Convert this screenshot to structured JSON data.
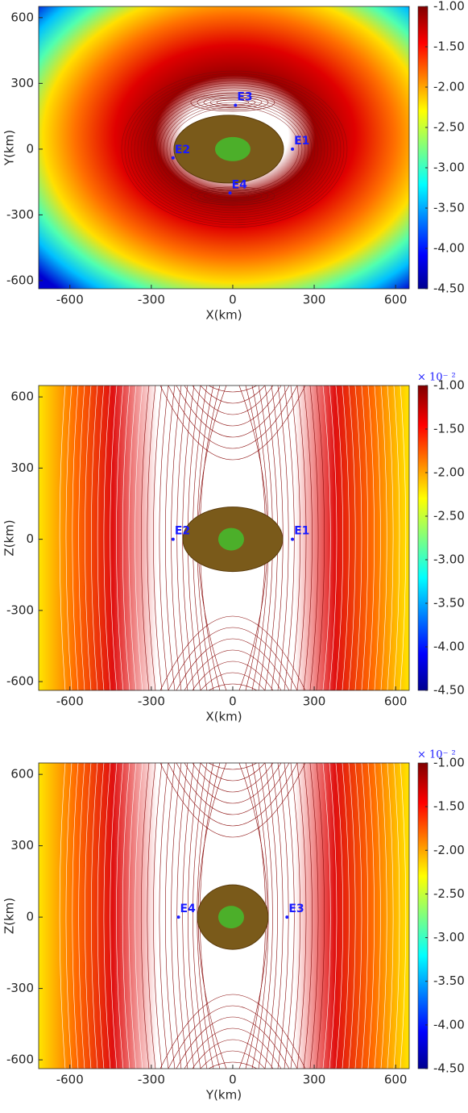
{
  "chart_data": [
    {
      "type": "contour",
      "x_label": "X(km)",
      "y_label": "Y(km)",
      "xlim": [
        -715,
        650
      ],
      "ylim": [
        -637,
        651
      ],
      "xticks": [
        -600,
        -300,
        0,
        300,
        600
      ],
      "yticks": [
        -600,
        -300,
        0,
        300,
        600
      ],
      "colorbar": {
        "lim": [
          -4.5,
          -1
        ],
        "ticks": [
          {
            "value": -1,
            "label": "-1.00"
          },
          {
            "value": -1.5,
            "label": "-1.50"
          },
          {
            "value": -2,
            "label": "-2.00"
          },
          {
            "value": -2.5,
            "label": "-2.50"
          },
          {
            "value": -3,
            "label": "-3.00"
          },
          {
            "value": -3.5,
            "label": "-3.50"
          },
          {
            "value": -4,
            "label": "-4.00"
          },
          {
            "value": -4.5,
            "label": "-4.50"
          }
        ]
      },
      "field": "radial",
      "points": [
        {
          "label": "E1",
          "x": 220,
          "y": 0
        },
        {
          "label": "E2",
          "x": -220,
          "y": -40
        },
        {
          "label": "E3",
          "x": 10,
          "y": 200
        },
        {
          "label": "E4",
          "x": -10,
          "y": -200
        }
      ],
      "point_color": "#1a1aff"
    },
    {
      "type": "contour",
      "x_label": "X(km)",
      "y_label": "Z(km)",
      "xlim": [
        -715,
        650
      ],
      "ylim": [
        -637,
        648
      ],
      "xticks": [
        -600,
        -300,
        0,
        300,
        600
      ],
      "yticks": [
        -600,
        -300,
        0,
        300,
        600
      ],
      "colorbar": {
        "scale_label": "× 10⁻ ²",
        "lim": [
          -4.5,
          -1
        ],
        "ticks": [
          {
            "value": -1,
            "label": "-1.00"
          },
          {
            "value": -1.5,
            "label": "-1.50"
          },
          {
            "value": -2,
            "label": "-2.00"
          },
          {
            "value": -2.5,
            "label": "-2.50"
          },
          {
            "value": -3,
            "label": "-3.00"
          },
          {
            "value": -3.5,
            "label": "-3.50"
          },
          {
            "value": -4,
            "label": "-4.00"
          },
          {
            "value": -4.5,
            "label": "-4.50"
          }
        ]
      },
      "field": "vertical",
      "points": [
        {
          "label": "E1",
          "x": 220,
          "y": 0
        },
        {
          "label": "E2",
          "x": -220,
          "y": 0
        }
      ],
      "point_color": "#1a1aff"
    },
    {
      "type": "contour",
      "x_label": "Y(km)",
      "y_label": "Z(km)",
      "xlim": [
        -715,
        650
      ],
      "ylim": [
        -637,
        648
      ],
      "xticks": [
        -600,
        -300,
        0,
        300,
        600
      ],
      "yticks": [
        -600,
        -300,
        0,
        300,
        600
      ],
      "colorbar": {
        "scale_label": "× 10⁻ ²",
        "lim": [
          -4.5,
          -1
        ],
        "ticks": [
          {
            "value": -1,
            "label": "-1.00"
          },
          {
            "value": -1.5,
            "label": "-1.50"
          },
          {
            "value": -2,
            "label": "-2.00"
          },
          {
            "value": -2.5,
            "label": "-2.50"
          },
          {
            "value": -3,
            "label": "-3.00"
          },
          {
            "value": -3.5,
            "label": "-3.50"
          },
          {
            "value": -4,
            "label": "-4.00"
          },
          {
            "value": -4.5,
            "label": "-4.50"
          }
        ]
      },
      "field": "vertical",
      "points": [
        {
          "label": "E4",
          "x": -200,
          "y": 0
        },
        {
          "label": "E3",
          "x": 200,
          "y": 0
        }
      ],
      "point_color": "#1a1aff"
    }
  ]
}
